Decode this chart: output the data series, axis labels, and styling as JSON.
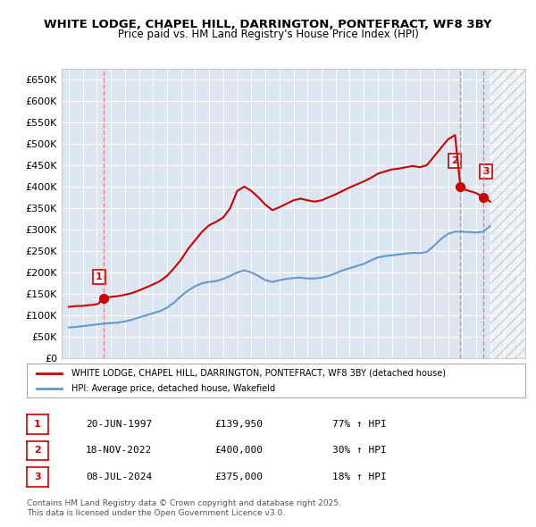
{
  "title1": "WHITE LODGE, CHAPEL HILL, DARRINGTON, PONTEFRACT, WF8 3BY",
  "title2": "Price paid vs. HM Land Registry's House Price Index (HPI)",
  "ylabel_ticks": [
    "£0",
    "£50K",
    "£100K",
    "£150K",
    "£200K",
    "£250K",
    "£300K",
    "£350K",
    "£400K",
    "£450K",
    "£500K",
    "£550K",
    "£600K",
    "£650K"
  ],
  "ytick_values": [
    0,
    50000,
    100000,
    150000,
    200000,
    250000,
    300000,
    350000,
    400000,
    450000,
    500000,
    550000,
    600000,
    650000
  ],
  "xlim": [
    1994.5,
    2027.5
  ],
  "ylim": [
    0,
    675000
  ],
  "hpi_color": "#6699cc",
  "price_color": "#cc0000",
  "bg_color": "#dce6f0",
  "grid_color": "#ffffff",
  "legend_text1": "WHITE LODGE, CHAPEL HILL, DARRINGTON, PONTEFRACT, WF8 3BY (detached house)",
  "legend_text2": "HPI: Average price, detached house, Wakefield",
  "sale1_date": "20-JUN-1997",
  "sale1_price": "£139,950",
  "sale1_hpi": "77% ↑ HPI",
  "sale1_year": 1997.47,
  "sale1_value": 139950,
  "sale2_date": "18-NOV-2022",
  "sale2_price": "£400,000",
  "sale2_hpi": "30% ↑ HPI",
  "sale2_year": 2022.88,
  "sale2_value": 400000,
  "sale3_date": "08-JUL-2024",
  "sale3_price": "£375,000",
  "sale3_hpi": "18% ↑ HPI",
  "sale3_year": 2024.52,
  "sale3_value": 375000,
  "footer1": "Contains HM Land Registry data © Crown copyright and database right 2025.",
  "footer2": "This data is licensed under the Open Government Licence v3.0.",
  "hpi_line": {
    "years": [
      1995.0,
      1995.5,
      1996.0,
      1996.5,
      1997.0,
      1997.5,
      1998.0,
      1998.5,
      1999.0,
      1999.5,
      2000.0,
      2000.5,
      2001.0,
      2001.5,
      2002.0,
      2002.5,
      2003.0,
      2003.5,
      2004.0,
      2004.5,
      2005.0,
      2005.5,
      2006.0,
      2006.5,
      2007.0,
      2007.5,
      2008.0,
      2008.5,
      2009.0,
      2009.5,
      2010.0,
      2010.5,
      2011.0,
      2011.5,
      2012.0,
      2012.5,
      2013.0,
      2013.5,
      2014.0,
      2014.5,
      2015.0,
      2015.5,
      2016.0,
      2016.5,
      2017.0,
      2017.5,
      2018.0,
      2018.5,
      2019.0,
      2019.5,
      2020.0,
      2020.5,
      2021.0,
      2021.5,
      2022.0,
      2022.5,
      2023.0,
      2023.5,
      2024.0,
      2024.5,
      2025.0
    ],
    "values": [
      72000,
      73000,
      75000,
      77000,
      79000,
      81000,
      82000,
      83000,
      86000,
      90000,
      95000,
      100000,
      105000,
      110000,
      118000,
      130000,
      145000,
      158000,
      168000,
      175000,
      178000,
      180000,
      185000,
      192000,
      200000,
      205000,
      200000,
      192000,
      182000,
      178000,
      182000,
      185000,
      187000,
      188000,
      186000,
      186000,
      188000,
      192000,
      198000,
      205000,
      210000,
      215000,
      220000,
      228000,
      235000,
      238000,
      240000,
      242000,
      244000,
      246000,
      245000,
      248000,
      262000,
      278000,
      290000,
      295000,
      295000,
      294000,
      293000,
      295000,
      308000
    ]
  },
  "price_line": {
    "years": [
      1995.0,
      1995.3,
      1995.6,
      1995.9,
      1996.2,
      1996.5,
      1996.8,
      1997.1,
      1997.47,
      1997.7,
      1998.0,
      1998.5,
      1999.0,
      1999.5,
      2000.0,
      2000.5,
      2001.0,
      2001.5,
      2002.0,
      2002.5,
      2003.0,
      2003.5,
      2004.0,
      2004.5,
      2005.0,
      2005.5,
      2006.0,
      2006.5,
      2007.0,
      2007.5,
      2008.0,
      2008.5,
      2009.0,
      2009.5,
      2010.0,
      2010.5,
      2011.0,
      2011.5,
      2012.0,
      2012.5,
      2013.0,
      2013.5,
      2014.0,
      2014.5,
      2015.0,
      2015.5,
      2016.0,
      2016.5,
      2017.0,
      2017.5,
      2018.0,
      2018.5,
      2019.0,
      2019.5,
      2020.0,
      2020.5,
      2021.0,
      2021.5,
      2022.0,
      2022.5,
      2022.88,
      2023.0,
      2023.5,
      2024.0,
      2024.52,
      2024.8,
      2025.0
    ],
    "values": [
      120000,
      121000,
      122000,
      122000,
      123000,
      124000,
      125000,
      127000,
      139950,
      142000,
      143000,
      145000,
      148000,
      152000,
      158000,
      165000,
      172000,
      180000,
      192000,
      210000,
      230000,
      255000,
      275000,
      295000,
      310000,
      318000,
      328000,
      350000,
      390000,
      400000,
      390000,
      375000,
      358000,
      345000,
      352000,
      360000,
      368000,
      372000,
      368000,
      365000,
      368000,
      375000,
      382000,
      390000,
      398000,
      405000,
      412000,
      420000,
      430000,
      435000,
      440000,
      442000,
      445000,
      448000,
      445000,
      450000,
      470000,
      490000,
      510000,
      520000,
      400000,
      395000,
      390000,
      385000,
      375000,
      370000,
      365000
    ]
  }
}
